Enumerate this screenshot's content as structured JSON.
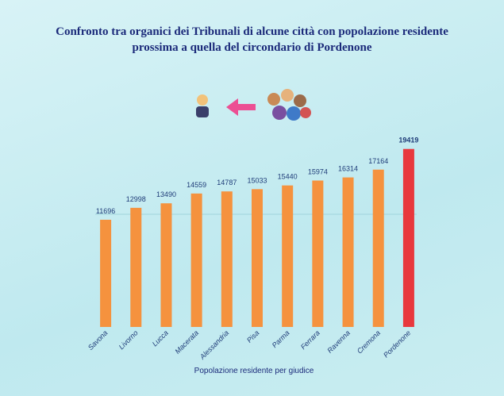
{
  "chart_data": {
    "type": "bar",
    "title": "Confronto tra organici dei Tribunali di alcune città con popolazione residente prossima a quella del circondario di Pordenone",
    "xlabel": "Popolazione residente per giudice",
    "categories": [
      "Savona",
      "Livorno",
      "Lucca",
      "Macerata",
      "Alessandria",
      "Pisa",
      "Parma",
      "Ferrara",
      "Ravenna",
      "Cremona",
      "Pordenone"
    ],
    "values": [
      11696,
      12998,
      13490,
      14559,
      14787,
      15033,
      15440,
      15974,
      16314,
      17164,
      19419
    ],
    "colors": [
      "#f5923e",
      "#f5923e",
      "#f5923e",
      "#f5923e",
      "#f5923e",
      "#f5923e",
      "#f5923e",
      "#f5923e",
      "#f5923e",
      "#f5923e",
      "#e8383d"
    ],
    "ylim": [
      0,
      20000
    ]
  }
}
